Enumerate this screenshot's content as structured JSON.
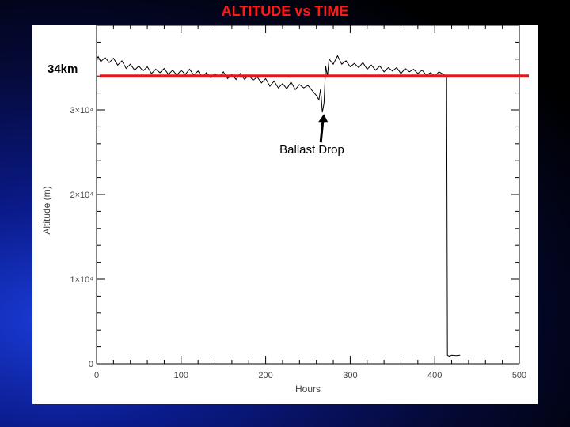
{
  "slide": {
    "title": "ALTITUDE  vs TIME"
  },
  "chart_data": {
    "type": "line",
    "xlabel": "Hours",
    "ylabel": "Altitude (m)",
    "xlim": [
      0,
      500
    ],
    "ylim": [
      0,
      40000
    ],
    "x_ticks": [
      {
        "value": 0,
        "label": "0"
      },
      {
        "value": 100,
        "label": "100"
      },
      {
        "value": 200,
        "label": "200"
      },
      {
        "value": 300,
        "label": "300"
      },
      {
        "value": 400,
        "label": "400"
      },
      {
        "value": 500,
        "label": "500"
      }
    ],
    "y_ticks": [
      {
        "value": 0,
        "label": "0"
      },
      {
        "value": 10000,
        "label": "1×10⁴"
      },
      {
        "value": 20000,
        "label": "2×10⁴"
      },
      {
        "value": 30000,
        "label": "3×10⁴"
      }
    ],
    "series": [
      {
        "color": "#000000",
        "points": [
          [
            0,
            36000
          ],
          [
            2,
            36300
          ],
          [
            5,
            35700
          ],
          [
            10,
            36200
          ],
          [
            15,
            35600
          ],
          [
            20,
            36100
          ],
          [
            25,
            35300
          ],
          [
            30,
            35800
          ],
          [
            35,
            34900
          ],
          [
            40,
            35400
          ],
          [
            45,
            34700
          ],
          [
            50,
            35200
          ],
          [
            55,
            34600
          ],
          [
            60,
            35100
          ],
          [
            65,
            34300
          ],
          [
            70,
            34800
          ],
          [
            75,
            34400
          ],
          [
            80,
            34900
          ],
          [
            85,
            34200
          ],
          [
            90,
            34700
          ],
          [
            95,
            34100
          ],
          [
            100,
            34700
          ],
          [
            105,
            34200
          ],
          [
            110,
            34800
          ],
          [
            115,
            34100
          ],
          [
            120,
            34600
          ],
          [
            125,
            33900
          ],
          [
            130,
            34400
          ],
          [
            135,
            33800
          ],
          [
            140,
            34300
          ],
          [
            145,
            33900
          ],
          [
            150,
            34500
          ],
          [
            155,
            33700
          ],
          [
            160,
            34200
          ],
          [
            165,
            33600
          ],
          [
            170,
            34300
          ],
          [
            175,
            33600
          ],
          [
            180,
            34100
          ],
          [
            185,
            33500
          ],
          [
            190,
            33900
          ],
          [
            195,
            33200
          ],
          [
            200,
            33700
          ],
          [
            205,
            32800
          ],
          [
            210,
            33400
          ],
          [
            215,
            32600
          ],
          [
            220,
            33100
          ],
          [
            225,
            32500
          ],
          [
            230,
            33300
          ],
          [
            235,
            32400
          ],
          [
            240,
            33000
          ],
          [
            245,
            32600
          ],
          [
            250,
            32900
          ],
          [
            255,
            32300
          ],
          [
            260,
            31700
          ],
          [
            263,
            31200
          ],
          [
            265,
            32500
          ],
          [
            267,
            29700
          ],
          [
            269,
            30800
          ],
          [
            271,
            35200
          ],
          [
            273,
            34000
          ],
          [
            275,
            36000
          ],
          [
            280,
            35400
          ],
          [
            285,
            36400
          ],
          [
            290,
            35400
          ],
          [
            295,
            35800
          ],
          [
            300,
            35100
          ],
          [
            305,
            35500
          ],
          [
            310,
            35000
          ],
          [
            315,
            35600
          ],
          [
            320,
            34800
          ],
          [
            325,
            35300
          ],
          [
            330,
            34700
          ],
          [
            335,
            35200
          ],
          [
            340,
            34500
          ],
          [
            345,
            35000
          ],
          [
            350,
            34600
          ],
          [
            355,
            35000
          ],
          [
            360,
            34300
          ],
          [
            365,
            34900
          ],
          [
            370,
            34500
          ],
          [
            375,
            34800
          ],
          [
            380,
            34300
          ],
          [
            385,
            34700
          ],
          [
            390,
            34100
          ],
          [
            395,
            34400
          ],
          [
            400,
            34000
          ],
          [
            405,
            34500
          ],
          [
            410,
            34200
          ],
          [
            414,
            34000
          ],
          [
            415,
            1000
          ],
          [
            417,
            900
          ],
          [
            420,
            1000
          ],
          [
            425,
            950
          ],
          [
            430,
            1000
          ]
        ]
      }
    ],
    "reference_lines": [
      {
        "y": 34000,
        "label": "34km",
        "color": "#e8151b"
      }
    ],
    "annotations": [
      {
        "text": "Ballast Drop",
        "arrow_to": [
          267,
          29700
        ]
      }
    ],
    "grid": false
  }
}
